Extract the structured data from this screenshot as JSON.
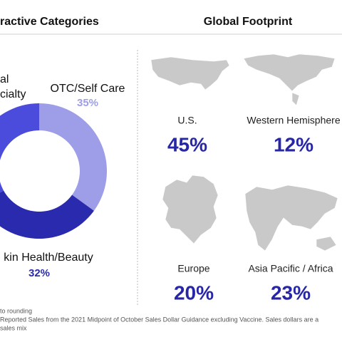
{
  "header": {
    "left": "ractive Categories",
    "right": "Global Footprint"
  },
  "chart_data": {
    "type": "donut",
    "categories": [
      [
        "OTC/Self Care"
      ],
      [
        "kin Health/Beauty"
      ],
      [
        "al",
        "cialty"
      ]
    ],
    "values": [
      35,
      32,
      33
    ],
    "value_labels": [
      "35%",
      "32%",
      null
    ],
    "colors": [
      "#9d9de8",
      "#2a2aae",
      "#4b4bdc"
    ]
  },
  "footprint": [
    {
      "label": "U.S.",
      "value": "45%"
    },
    {
      "label": "Western Hemisphere",
      "value": "12%"
    },
    {
      "label": "Europe",
      "value": "20%"
    },
    {
      "label": "Asia Pacific / Africa",
      "value": "23%"
    }
  ],
  "footnotes": [
    " to rounding",
    "Reported Sales from the 2021 Midpoint of October Sales Dollar Guidance excluding Vaccine. Sales dollars are a",
    "sales mix"
  ]
}
